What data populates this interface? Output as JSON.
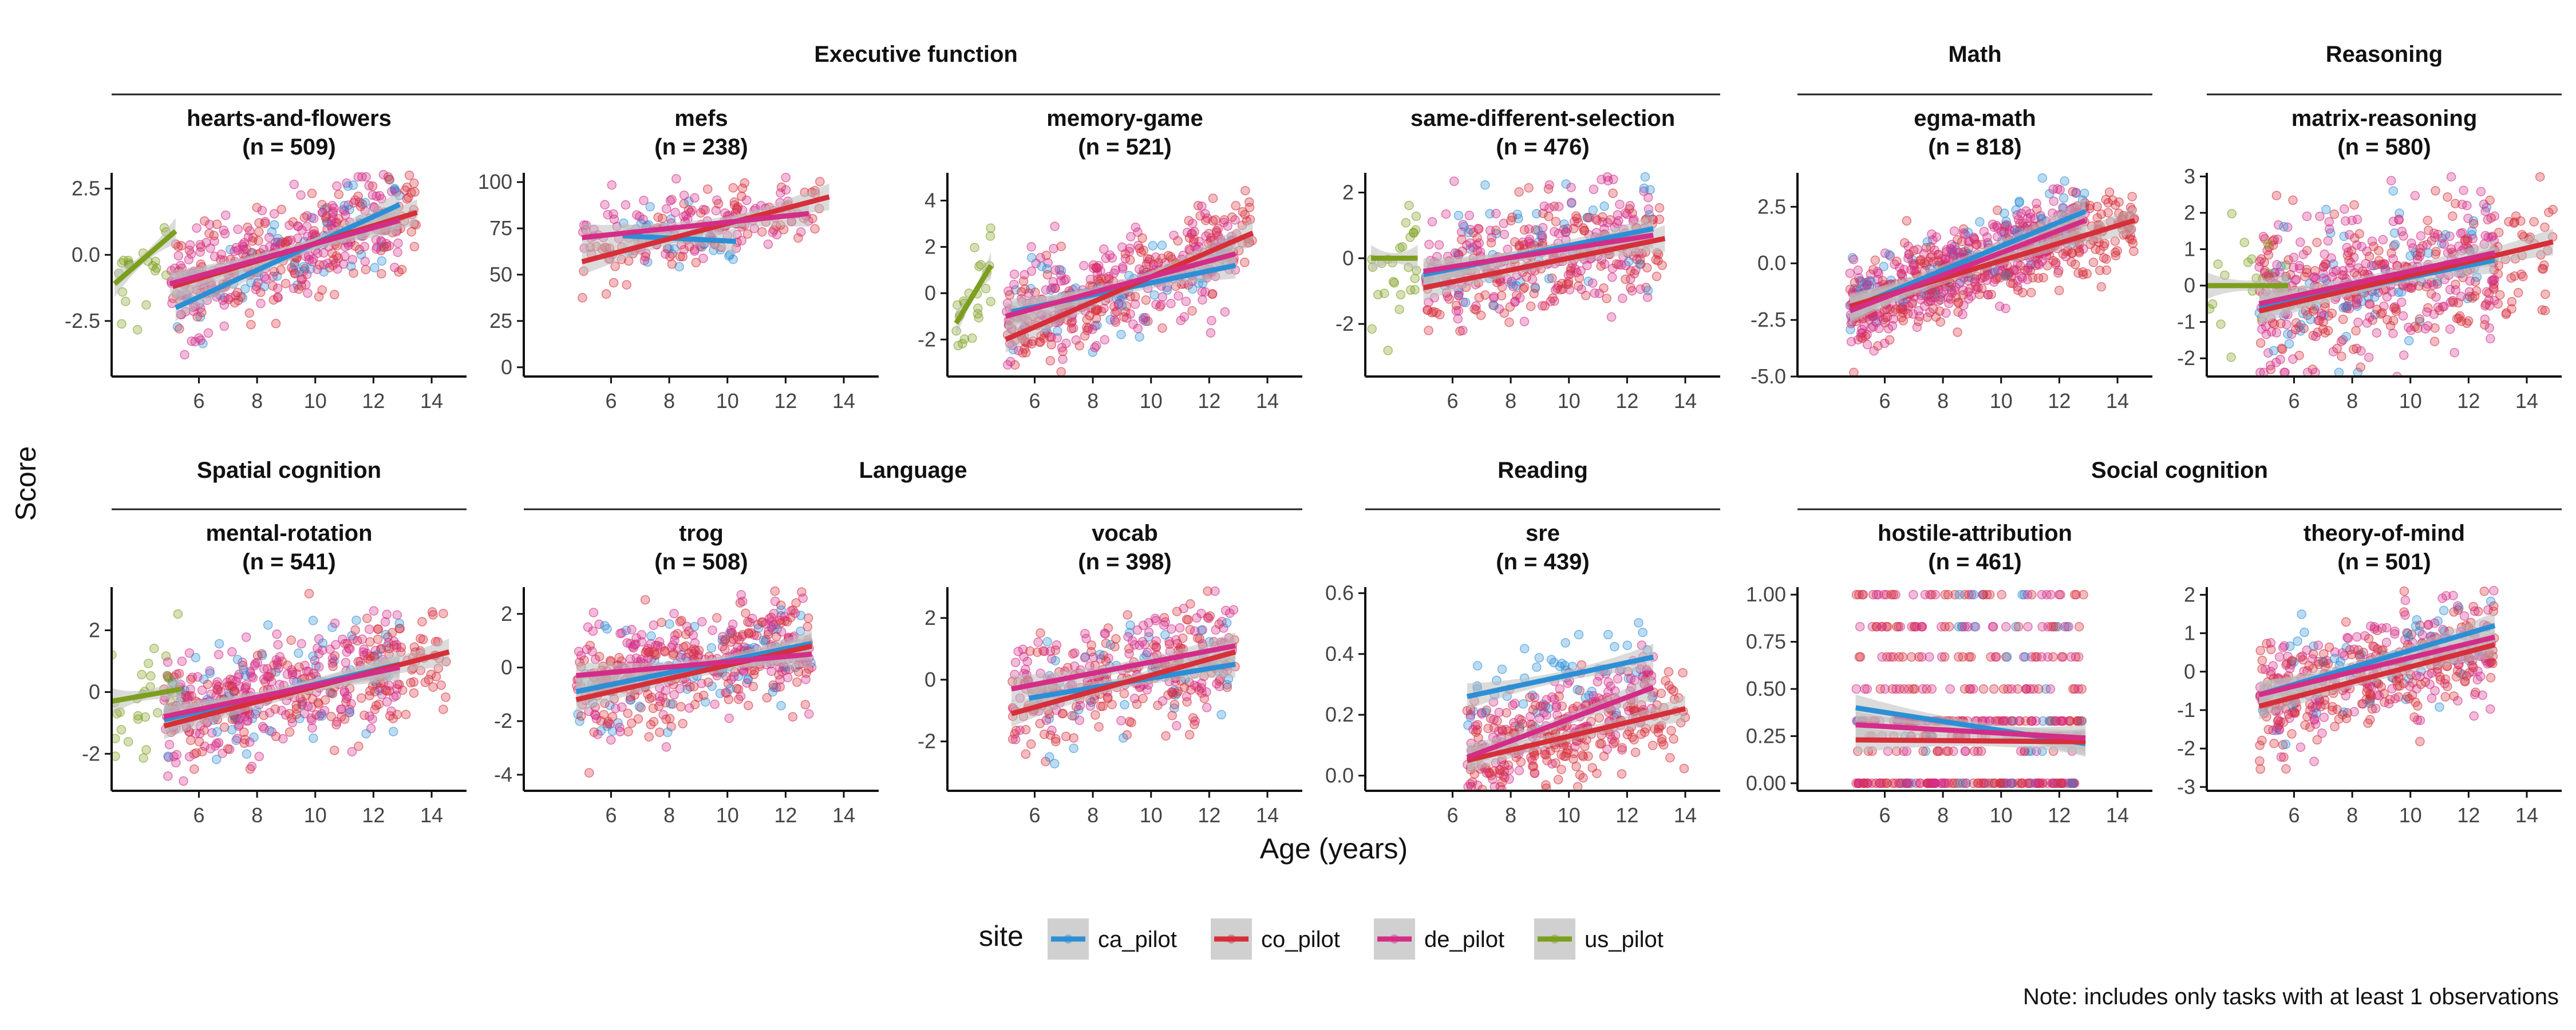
{
  "chart_data": {
    "type": "scatter",
    "xlabel": "Age (years)",
    "ylabel": "Score",
    "caption": "Note: includes only tasks with at least 1 observations",
    "legend": {
      "title": "site",
      "placement": "bottom",
      "items": [
        {
          "name": "ca_pilot",
          "color": "#2c8fd6"
        },
        {
          "name": "co_pilot",
          "color": "#d62f3a"
        },
        {
          "name": "de_pilot",
          "color": "#d42d88"
        },
        {
          "name": "us_pilot",
          "color": "#7d9f1e"
        }
      ]
    },
    "colors": {
      "ca_pilot": "#2c8fd6",
      "co_pilot": "#d62f3a",
      "de_pilot": "#d42d88",
      "us_pilot": "#7d9f1e",
      "ribbon": "#bdbdbd"
    },
    "groups": [
      {
        "title": "Executive function",
        "row": 0,
        "from": 0,
        "to": 3
      },
      {
        "title": "Math",
        "row": 0,
        "from": 4,
        "to": 4
      },
      {
        "title": "Reasoning",
        "row": 0,
        "from": 5,
        "to": 5
      },
      {
        "title": "Spatial cognition",
        "row": 1,
        "from": 0,
        "to": 0
      },
      {
        "title": "Language",
        "row": 1,
        "from": 1,
        "to": 2
      },
      {
        "title": "Reading",
        "row": 1,
        "from": 3,
        "to": 3
      },
      {
        "title": "Social cognition",
        "row": 1,
        "from": 4,
        "to": 5
      }
    ],
    "x_ticks": [
      6,
      8,
      10,
      12,
      14
    ],
    "xlim": [
      3,
      15.2
    ],
    "panels": [
      {
        "task": "hearts-and-flowers",
        "n_label": "(n = 509)",
        "row": 0,
        "col": 0,
        "ylim": [
          -4.6,
          3.1
        ],
        "y_ticks": [
          -2.5,
          0.0,
          2.5
        ],
        "y_tick_labels": [
          "-2.5",
          "0.0",
          "2.5"
        ],
        "points": {
          "center": 0.1,
          "slope": 0.3,
          "sd": 0.9,
          "n": 509
        },
        "fits": [
          {
            "site": "ca_pilot",
            "x": [
              5.2,
              12.9
            ],
            "y": [
              -2.0,
              1.9
            ]
          },
          {
            "site": "co_pilot",
            "x": [
              5.1,
              13.5
            ],
            "y": [
              -1.2,
              1.6
            ]
          },
          {
            "site": "de_pilot",
            "x": [
              5.0,
              12.9
            ],
            "y": [
              -1.1,
              1.3
            ]
          },
          {
            "site": "us_pilot",
            "x": [
              3.1,
              5.2
            ],
            "y": [
              -1.1,
              0.9
            ]
          }
        ]
      },
      {
        "task": "mefs",
        "n_label": "(n = 238)",
        "row": 0,
        "col": 1,
        "ylim": [
          -5,
          105
        ],
        "y_ticks": [
          0,
          25,
          50,
          75,
          100
        ],
        "y_tick_labels": [
          "0",
          "25",
          "50",
          "75",
          "100"
        ],
        "points": {
          "center": 75,
          "slope": 3.5,
          "sd": 10,
          "n": 238
        },
        "fits": [
          {
            "site": "ca_pilot",
            "x": [
              6.4,
              10.3
            ],
            "y": [
              71,
              68
            ]
          },
          {
            "site": "co_pilot",
            "x": [
              5.0,
              13.5
            ],
            "y": [
              57,
              92
            ]
          },
          {
            "site": "de_pilot",
            "x": [
              5.0,
              12.8
            ],
            "y": [
              70,
              83
            ]
          }
        ]
      },
      {
        "task": "memory-game",
        "n_label": "(n = 521)",
        "row": 0,
        "col": 2,
        "ylim": [
          -3.6,
          5.2
        ],
        "y_ticks": [
          -2,
          0,
          2,
          4
        ],
        "y_tick_labels": [
          "-2",
          "0",
          "2",
          "4"
        ],
        "points": {
          "center": 0.3,
          "slope": 0.35,
          "sd": 1.1,
          "n": 521
        },
        "fits": [
          {
            "site": "ca_pilot",
            "x": [
              5.2,
              12.9
            ],
            "y": [
              -0.8,
              1.2
            ]
          },
          {
            "site": "co_pilot",
            "x": [
              5.0,
              13.5
            ],
            "y": [
              -2.0,
              2.6
            ]
          },
          {
            "site": "de_pilot",
            "x": [
              5.0,
              12.9
            ],
            "y": [
              -1.0,
              1.7
            ]
          },
          {
            "site": "us_pilot",
            "x": [
              3.3,
              4.5
            ],
            "y": [
              -1.3,
              1.2
            ]
          }
        ]
      },
      {
        "task": "same-different-selection",
        "n_label": "(n = 476)",
        "row": 0,
        "col": 3,
        "ylim": [
          -3.6,
          2.6
        ],
        "y_ticks": [
          -2,
          0,
          2
        ],
        "y_tick_labels": [
          "-2",
          "0",
          "2"
        ],
        "points": {
          "center": 0.1,
          "slope": 0.12,
          "sd": 0.9,
          "n": 476
        },
        "fits": [
          {
            "site": "ca_pilot",
            "x": [
              5.0,
              12.9
            ],
            "y": [
              -0.5,
              0.9
            ]
          },
          {
            "site": "co_pilot",
            "x": [
              5.0,
              13.3
            ],
            "y": [
              -0.9,
              0.6
            ]
          },
          {
            "site": "de_pilot",
            "x": [
              5.0,
              12.9
            ],
            "y": [
              -0.4,
              0.7
            ]
          },
          {
            "site": "us_pilot",
            "x": [
              3.2,
              4.8
            ],
            "y": [
              0.0,
              0.0
            ]
          }
        ]
      },
      {
        "task": "egma-math",
        "n_label": "(n = 818)",
        "row": 0,
        "col": 4,
        "ylim": [
          -5.0,
          4.0
        ],
        "y_ticks": [
          -5.0,
          -2.5,
          0.0,
          2.5
        ],
        "y_tick_labels": [
          "-5.0",
          "-2.5",
          "0.0",
          "2.5"
        ],
        "points": {
          "center": 0.0,
          "slope": 0.45,
          "sd": 0.9,
          "n": 818
        },
        "fits": [
          {
            "site": "ca_pilot",
            "x": [
              4.8,
              12.9
            ],
            "y": [
              -2.0,
              2.3
            ]
          },
          {
            "site": "co_pilot",
            "x": [
              4.8,
              14.6
            ],
            "y": [
              -1.9,
              1.9
            ]
          },
          {
            "site": "de_pilot",
            "x": [
              4.8,
              12.9
            ],
            "y": [
              -2.1,
              1.9
            ]
          }
        ]
      },
      {
        "task": "matrix-reasoning",
        "n_label": "(n = 580)",
        "row": 0,
        "col": 5,
        "ylim": [
          -2.5,
          3.1
        ],
        "y_ticks": [
          -2,
          -1,
          0,
          1,
          2,
          3
        ],
        "y_tick_labels": [
          "-2",
          "-1",
          "0",
          "1",
          "2",
          "3"
        ],
        "points": {
          "center": 0.1,
          "slope": 0.15,
          "sd": 1.0,
          "n": 580
        },
        "fits": [
          {
            "site": "ca_pilot",
            "x": [
              4.8,
              12.9
            ],
            "y": [
              -0.6,
              0.7
            ]
          },
          {
            "site": "co_pilot",
            "x": [
              4.8,
              14.9
            ],
            "y": [
              -0.7,
              1.2
            ]
          },
          {
            "site": "de_pilot",
            "x": [
              4.8,
              12.9
            ],
            "y": [
              -0.5,
              0.9
            ]
          },
          {
            "site": "us_pilot",
            "x": [
              3.0,
              5.8
            ],
            "y": [
              0.0,
              0.0
            ]
          }
        ]
      },
      {
        "task": "mental-rotation",
        "n_label": "(n = 541)",
        "row": 1,
        "col": 0,
        "ylim": [
          -3.2,
          3.4
        ],
        "y_ticks": [
          -2,
          0,
          2
        ],
        "y_tick_labels": [
          "-2",
          "0",
          "2"
        ],
        "points": {
          "center": 0.0,
          "slope": 0.2,
          "sd": 0.9,
          "n": 541
        },
        "fits": [
          {
            "site": "ca_pilot",
            "x": [
              4.8,
              12.9
            ],
            "y": [
              -0.9,
              0.9
            ]
          },
          {
            "site": "co_pilot",
            "x": [
              4.8,
              14.6
            ],
            "y": [
              -1.1,
              1.3
            ]
          },
          {
            "site": "de_pilot",
            "x": [
              4.8,
              12.9
            ],
            "y": [
              -0.8,
              0.8
            ]
          },
          {
            "site": "us_pilot",
            "x": [
              3.0,
              5.4
            ],
            "y": [
              -0.3,
              0.1
            ]
          }
        ]
      },
      {
        "task": "trog",
        "n_label": "(n = 508)",
        "row": 1,
        "col": 1,
        "ylim": [
          -4.6,
          3.0
        ],
        "y_ticks": [
          -4,
          -2,
          0,
          2
        ],
        "y_tick_labels": [
          "-4",
          "-2",
          "0",
          "2"
        ],
        "points": {
          "center": 0.0,
          "slope": 0.2,
          "sd": 1.0,
          "n": 508
        },
        "fits": [
          {
            "site": "ca_pilot",
            "x": [
              4.8,
              12.9
            ],
            "y": [
              -0.9,
              0.9
            ]
          },
          {
            "site": "co_pilot",
            "x": [
              4.8,
              12.9
            ],
            "y": [
              -1.2,
              0.8
            ]
          },
          {
            "site": "de_pilot",
            "x": [
              4.8,
              12.9
            ],
            "y": [
              -0.3,
              0.5
            ]
          }
        ]
      },
      {
        "task": "vocab",
        "n_label": "(n = 398)",
        "row": 1,
        "col": 2,
        "ylim": [
          -3.6,
          3.0
        ],
        "y_ticks": [
          -2,
          0,
          2
        ],
        "y_tick_labels": [
          "-2",
          "0",
          "2"
        ],
        "points": {
          "center": 0.0,
          "slope": 0.25,
          "sd": 0.9,
          "n": 398
        },
        "fits": [
          {
            "site": "ca_pilot",
            "x": [
              5.8,
              12.9
            ],
            "y": [
              -0.6,
              0.5
            ]
          },
          {
            "site": "co_pilot",
            "x": [
              5.2,
              12.9
            ],
            "y": [
              -1.1,
              0.9
            ]
          },
          {
            "site": "de_pilot",
            "x": [
              5.2,
              12.9
            ],
            "y": [
              -0.3,
              1.1
            ]
          }
        ]
      },
      {
        "task": "sre",
        "n_label": "(n = 439)",
        "row": 1,
        "col": 3,
        "ylim": [
          -0.05,
          0.62
        ],
        "y_ticks": [
          0.0,
          0.2,
          0.4,
          0.6
        ],
        "y_tick_labels": [
          "0.0",
          "0.2",
          "0.4",
          "0.6"
        ],
        "points": {
          "center": 0.16,
          "slope": 0.025,
          "sd": 0.08,
          "n": 439
        },
        "fits": [
          {
            "site": "ca_pilot",
            "x": [
              6.5,
              12.9
            ],
            "y": [
              0.26,
              0.39
            ]
          },
          {
            "site": "co_pilot",
            "x": [
              6.5,
              14.0
            ],
            "y": [
              0.05,
              0.22
            ]
          },
          {
            "site": "de_pilot",
            "x": [
              6.5,
              12.9
            ],
            "y": [
              0.06,
              0.29
            ]
          }
        ]
      },
      {
        "task": "hostile-attribution",
        "n_label": "(n = 461)",
        "row": 1,
        "col": 4,
        "ylim": [
          -0.04,
          1.04
        ],
        "y_ticks": [
          0.0,
          0.25,
          0.5,
          0.75,
          1.0
        ],
        "y_tick_labels": [
          "0.00",
          "0.25",
          "0.50",
          "0.75",
          "1.00"
        ],
        "points": {
          "center": 0.25,
          "slope": 0.0,
          "sd": 0.18,
          "n": 461
        },
        "fits": [
          {
            "site": "ca_pilot",
            "x": [
              5.0,
              12.9
            ],
            "y": [
              0.4,
              0.21
            ]
          },
          {
            "site": "co_pilot",
            "x": [
              5.0,
              12.9
            ],
            "y": [
              0.23,
              0.22
            ]
          },
          {
            "site": "de_pilot",
            "x": [
              5.0,
              12.9
            ],
            "y": [
              0.31,
              0.24
            ]
          }
        ]
      },
      {
        "task": "theory-of-mind",
        "n_label": "(n = 501)",
        "row": 1,
        "col": 5,
        "ylim": [
          -3.1,
          2.2
        ],
        "y_ticks": [
          -3,
          -2,
          -1,
          0,
          1,
          2
        ],
        "y_tick_labels": [
          "-3",
          "-2",
          "-1",
          "0",
          "1",
          "2"
        ],
        "points": {
          "center": 0.1,
          "slope": 0.2,
          "sd": 0.7,
          "n": 501
        },
        "fits": [
          {
            "site": "ca_pilot",
            "x": [
              4.8,
              12.9
            ],
            "y": [
              -0.6,
              1.2
            ]
          },
          {
            "site": "co_pilot",
            "x": [
              4.8,
              12.9
            ],
            "y": [
              -0.9,
              0.7
            ]
          },
          {
            "site": "de_pilot",
            "x": [
              4.8,
              12.9
            ],
            "y": [
              -0.6,
              0.9
            ]
          }
        ]
      }
    ]
  }
}
